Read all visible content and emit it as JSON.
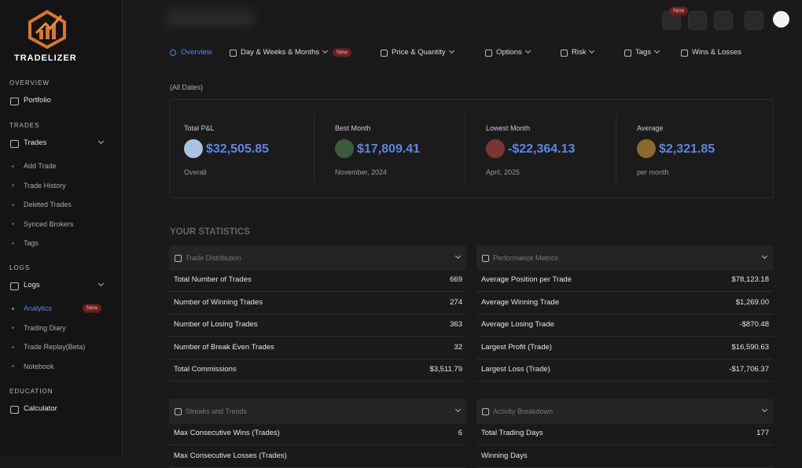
{
  "sidebar": {
    "brand": "TRADELIZER",
    "sections": [
      {
        "heading": "OVERVIEW",
        "items": [
          {
            "label": "Portfolio"
          }
        ]
      },
      {
        "heading": "TRADES",
        "items": [
          {
            "label": "Trades",
            "children": [
              {
                "label": "Add Trade"
              },
              {
                "label": "Trade History"
              },
              {
                "label": "Deleted Trades"
              },
              {
                "label": "Synced Brokers"
              },
              {
                "label": "Tags"
              }
            ]
          }
        ]
      },
      {
        "heading": "LOGS",
        "items": [
          {
            "label": "Logs",
            "children": [
              {
                "label": "Analytics",
                "badge": "New"
              },
              {
                "label": "Trading Diary"
              },
              {
                "label": "Trade Replay(Beta)"
              },
              {
                "label": "Notebook"
              }
            ]
          }
        ]
      },
      {
        "heading": "EDUCATION",
        "items": [
          {
            "label": "Calculator"
          }
        ]
      }
    ]
  },
  "topbar": {
    "badge": "New"
  },
  "tabs": [
    {
      "label": "Overview"
    },
    {
      "label": "Day & Weeks & Months",
      "dropdown": true,
      "badge": "New"
    },
    {
      "label": "Price & Quantity",
      "dropdown": true
    },
    {
      "label": "Options",
      "dropdown": true
    },
    {
      "label": "Risk",
      "dropdown": true
    },
    {
      "label": "Tags",
      "dropdown": true
    },
    {
      "label": "Wins & Losses"
    }
  ],
  "date_range": "(All Dates)",
  "summary": [
    {
      "title": "Total P&L",
      "value": "$32,505.85",
      "sub": "Overall"
    },
    {
      "title": "Best Month",
      "value": "$17,809.41",
      "sub": "November, 2024"
    },
    {
      "title": "Lowest Month",
      "value": "-$22,364.13",
      "sub": "April, 2025"
    },
    {
      "title": "Average",
      "value": "$2,321.85",
      "sub": "per month"
    }
  ],
  "statistics": {
    "heading": "YOUR STATISTICS",
    "panels": [
      {
        "title": "Trade Distribution",
        "rows": [
          {
            "label": "Total Number of Trades",
            "value": "669"
          },
          {
            "label": "Number of Winning Trades",
            "value": "274"
          },
          {
            "label": "Number of Losing Trades",
            "value": "363"
          },
          {
            "label": "Number of Break Even Trades",
            "value": "32"
          },
          {
            "label": "Total Commissions",
            "value": "$3,511.79"
          }
        ]
      },
      {
        "title": "Performance Metrics",
        "rows": [
          {
            "label": "Average Position per Trade",
            "value": "$78,123.18"
          },
          {
            "label": "Average Winning Trade",
            "value": "$1,269.00"
          },
          {
            "label": "Average Losing Trade",
            "value": "-$870.48"
          },
          {
            "label": "Largest Profit (Trade)",
            "value": "$16,590.63"
          },
          {
            "label": "Largest Loss (Trade)",
            "value": "-$17,706.37"
          }
        ]
      },
      {
        "title": "Streaks and Trends",
        "rows": [
          {
            "label": "Max Consecutive Wins (Trades)",
            "value": "6"
          },
          {
            "label": "Max Consecutive Losses (Trades)"
          }
        ]
      },
      {
        "title": "Activity Breakdown",
        "rows": [
          {
            "label": "Total Trading Days",
            "value": "177"
          },
          {
            "label": "Winning Days"
          }
        ]
      }
    ]
  }
}
